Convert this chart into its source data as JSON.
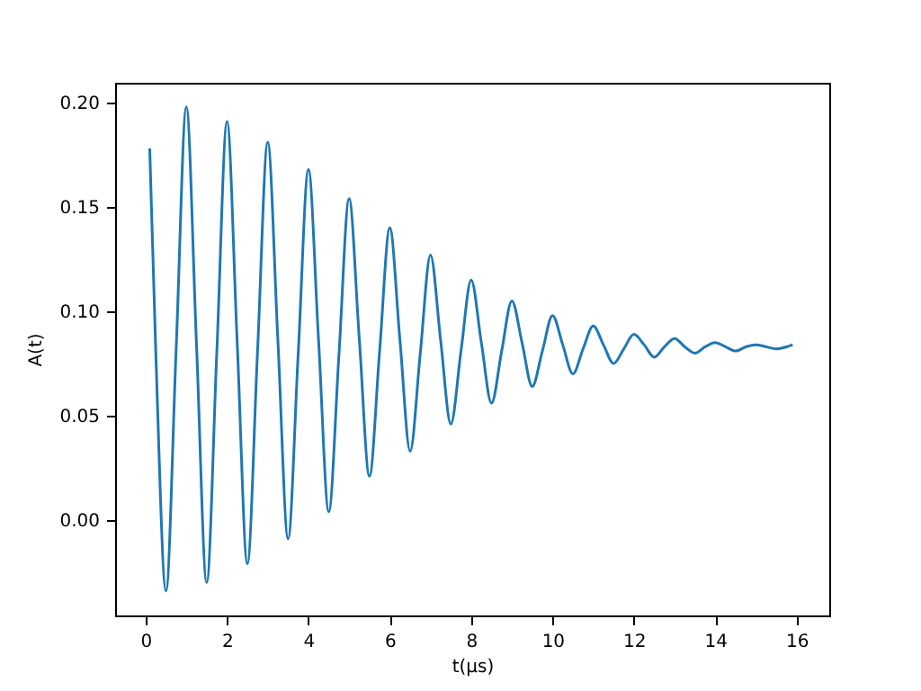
{
  "chart_data": {
    "type": "line",
    "xlabel": "t(μs)",
    "ylabel": "A(t)",
    "xlim": [
      -0.75,
      16.8
    ],
    "xticks": [
      0,
      2,
      4,
      6,
      8,
      10,
      12,
      14,
      16
    ],
    "ylim": [
      -0.0457,
      0.2095
    ],
    "yticks": [
      {
        "value": 0,
        "label": "0.00"
      },
      {
        "value": 0.05,
        "label": "0.05"
      },
      {
        "value": 0.1,
        "label": "0.10"
      },
      {
        "value": 0.15,
        "label": "0.15"
      },
      {
        "value": 0.2,
        "label": "0.20"
      }
    ],
    "grid": false,
    "x": [
      0.1,
      0.25,
      0.5,
      0.75,
      1.0,
      1.25,
      1.5,
      1.75,
      2.0,
      2.25,
      2.5,
      2.75,
      3.0,
      3.25,
      3.5,
      3.75,
      4.0,
      4.25,
      4.5,
      4.75,
      5.0,
      5.25,
      5.5,
      5.75,
      6.0,
      6.25,
      6.5,
      6.75,
      7.0,
      7.25,
      7.5,
      7.75,
      8.0,
      8.25,
      8.5,
      8.75,
      9.0,
      9.25,
      9.5,
      9.75,
      10,
      10.25,
      10.5,
      10.75,
      11,
      11.25,
      11.5,
      11.75,
      12,
      12.25,
      12.5,
      12.75,
      13,
      13.25,
      13.5,
      13.75,
      14,
      14.25,
      14.5,
      14.75,
      15,
      15.25,
      15.5,
      15.75,
      15.9
    ],
    "series": [
      {
        "color": "#1f77b4",
        "values": [
          0.178,
          0.08,
          -0.034,
          0.082,
          0.198,
          0.084,
          -0.03,
          0.081,
          0.191,
          0.085,
          -0.021,
          0.081,
          0.181,
          0.086,
          -0.009,
          0.08,
          0.168,
          0.086,
          0.004,
          0.079,
          0.154,
          0.087,
          0.021,
          0.081,
          0.14,
          0.086,
          0.033,
          0.08,
          0.127,
          0.086,
          0.046,
          0.081,
          0.115,
          0.085,
          0.056,
          0.081,
          0.105,
          0.085,
          0.064,
          0.081,
          0.098,
          0.084,
          0.07,
          0.082,
          0.093,
          0.084,
          0.075,
          0.082,
          0.089,
          0.084,
          0.078,
          0.083,
          0.087,
          0.083,
          0.08,
          0.083,
          0.085,
          0.083,
          0.081,
          0.083,
          0.084,
          0.083,
          0.082,
          0.083,
          0.084
        ]
      }
    ]
  }
}
